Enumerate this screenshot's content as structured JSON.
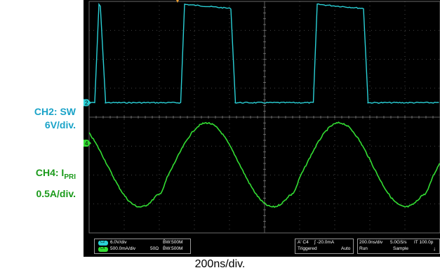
{
  "chart_data": {
    "type": "line",
    "xlabel": "200ns/div.",
    "x_divisions": 10,
    "y_divisions": 8,
    "channels": [
      {
        "name_prefix": "CH2: ",
        "name": "SW",
        "scale": "6V/div.",
        "color": "#2ad0d6",
        "waveform": "square",
        "marker": "2",
        "marker_div_from_top": 3.5,
        "high_div_from_top": 0.1,
        "low_div_from_top": 3.5,
        "period_div": 3.78,
        "rising_edges_div": [
          0.18,
          2.62,
          6.4
        ],
        "falling_edges_div": [
          0.35,
          4.05,
          7.83
        ]
      },
      {
        "name_prefix": "CH4: I",
        "name_sub": "PRI",
        "scale": "0.5A/div.",
        "color": "#33dd33",
        "waveform": "triangular-sine",
        "marker": "4",
        "marker_div_from_top": 4.9,
        "peak_div_from_top": 4.2,
        "trough_div_from_top": 7.1,
        "period_div": 3.78,
        "first_peak_div": 3.35
      }
    ]
  },
  "status_bar": {
    "ch2_scale": "6.0V/div",
    "ch2_bw": "B̄W:500M",
    "ch4_scale": "500.0mA/div",
    "ch4_impedance": "50Ω",
    "ch4_bw": "B̄W:500M",
    "ch2_chip": "C2",
    "ch4_chip": "C4",
    "trigger_source": "A' C4",
    "trigger_level": "∫ -20.0mA",
    "trigger_state": "Triggered",
    "trigger_mode": "Auto",
    "timebase": "200.0ns/div",
    "sample_rate": "5.0GS/s",
    "record": "IT  100.0p",
    "run_state": "Run",
    "acq_mode": "Sample",
    "arrow": "↓"
  }
}
